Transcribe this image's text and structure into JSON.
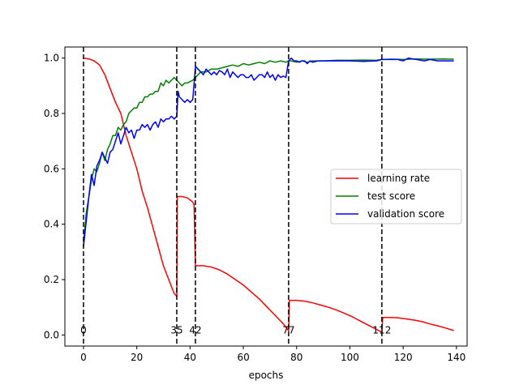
{
  "chart_data": {
    "type": "line",
    "title": "",
    "xlabel": "epochs",
    "ylabel": "",
    "xlim": [
      -7,
      144
    ],
    "ylim": [
      -0.04,
      1.04
    ],
    "xticks": [
      0,
      20,
      40,
      60,
      80,
      100,
      120,
      140
    ],
    "yticks": [
      0.0,
      0.2,
      0.4,
      0.6,
      0.8,
      1.0
    ],
    "xtick_labels": [
      "0",
      "20",
      "40",
      "60",
      "80",
      "100",
      "120",
      "140"
    ],
    "ytick_labels": [
      "0.0",
      "0.2",
      "0.4",
      "0.6",
      "0.8",
      "1.0"
    ],
    "grid": false,
    "legend_position": "center-right",
    "vlines": [
      {
        "x": 0,
        "label": "0"
      },
      {
        "x": 35,
        "label": "35"
      },
      {
        "x": 42,
        "label": "42"
      },
      {
        "x": 77,
        "label": "77"
      },
      {
        "x": 112,
        "label": "112"
      }
    ],
    "series": [
      {
        "name": "learning rate",
        "color": "#ff0000",
        "points": [
          [
            0,
            1.0
          ],
          [
            2,
            0.997
          ],
          [
            4,
            0.99
          ],
          [
            6,
            0.975
          ],
          [
            8,
            0.94
          ],
          [
            10,
            0.89
          ],
          [
            12,
            0.84
          ],
          [
            14,
            0.8
          ],
          [
            16,
            0.72
          ],
          [
            18,
            0.66
          ],
          [
            20,
            0.6
          ],
          [
            22,
            0.52
          ],
          [
            24,
            0.46
          ],
          [
            26,
            0.39
          ],
          [
            28,
            0.32
          ],
          [
            30,
            0.25
          ],
          [
            32,
            0.2
          ],
          [
            34,
            0.15
          ],
          [
            35,
            0.14
          ],
          [
            35.2,
            0.5
          ],
          [
            37,
            0.5
          ],
          [
            39,
            0.495
          ],
          [
            41,
            0.48
          ],
          [
            41.5,
            0.47
          ],
          [
            42,
            0.25
          ],
          [
            45,
            0.25
          ],
          [
            48,
            0.245
          ],
          [
            51,
            0.235
          ],
          [
            54,
            0.22
          ],
          [
            57,
            0.2
          ],
          [
            60,
            0.18
          ],
          [
            63,
            0.155
          ],
          [
            66,
            0.13
          ],
          [
            69,
            0.1
          ],
          [
            72,
            0.07
          ],
          [
            75,
            0.04
          ],
          [
            77,
            0.015
          ],
          [
            77.3,
            0.125
          ],
          [
            80,
            0.125
          ],
          [
            83,
            0.122
          ],
          [
            86,
            0.116
          ],
          [
            89,
            0.108
          ],
          [
            92,
            0.1
          ],
          [
            95,
            0.09
          ],
          [
            98,
            0.078
          ],
          [
            101,
            0.065
          ],
          [
            104,
            0.05
          ],
          [
            107,
            0.035
          ],
          [
            110,
            0.02
          ],
          [
            112,
            0.01
          ],
          [
            112.3,
            0.063
          ],
          [
            115,
            0.063
          ],
          [
            118,
            0.062
          ],
          [
            121,
            0.058
          ],
          [
            124,
            0.054
          ],
          [
            127,
            0.048
          ],
          [
            130,
            0.04
          ],
          [
            133,
            0.033
          ],
          [
            136,
            0.025
          ],
          [
            139,
            0.016
          ]
        ]
      },
      {
        "name": "test score",
        "color": "#008000",
        "points": [
          [
            0,
            0.33
          ],
          [
            1,
            0.44
          ],
          [
            2,
            0.5
          ],
          [
            3,
            0.56
          ],
          [
            4,
            0.6
          ],
          [
            5,
            0.59
          ],
          [
            6,
            0.62
          ],
          [
            7,
            0.66
          ],
          [
            8,
            0.63
          ],
          [
            9,
            0.67
          ],
          [
            10,
            0.69
          ],
          [
            11,
            0.72
          ],
          [
            12,
            0.72
          ],
          [
            13,
            0.75
          ],
          [
            14,
            0.74
          ],
          [
            15,
            0.76
          ],
          [
            16,
            0.77
          ],
          [
            17,
            0.8
          ],
          [
            18,
            0.81
          ],
          [
            19,
            0.82
          ],
          [
            20,
            0.82
          ],
          [
            21,
            0.84
          ],
          [
            22,
            0.84
          ],
          [
            23,
            0.86
          ],
          [
            24,
            0.86
          ],
          [
            25,
            0.87
          ],
          [
            26,
            0.87
          ],
          [
            27,
            0.88
          ],
          [
            28,
            0.88
          ],
          [
            29,
            0.91
          ],
          [
            30,
            0.9
          ],
          [
            31,
            0.92
          ],
          [
            32,
            0.91
          ],
          [
            33,
            0.92
          ],
          [
            34,
            0.93
          ],
          [
            35,
            0.92
          ],
          [
            36,
            0.91
          ],
          [
            37,
            0.9
          ],
          [
            38,
            0.91
          ],
          [
            39,
            0.91
          ],
          [
            40,
            0.915
          ],
          [
            41,
            0.92
          ],
          [
            42,
            0.93
          ],
          [
            43,
            0.94
          ],
          [
            44,
            0.95
          ],
          [
            46,
            0.95
          ],
          [
            48,
            0.96
          ],
          [
            50,
            0.96
          ],
          [
            52,
            0.965
          ],
          [
            54,
            0.97
          ],
          [
            56,
            0.975
          ],
          [
            58,
            0.97
          ],
          [
            60,
            0.98
          ],
          [
            62,
            0.975
          ],
          [
            64,
            0.98
          ],
          [
            66,
            0.985
          ],
          [
            68,
            0.98
          ],
          [
            70,
            0.99
          ],
          [
            72,
            0.985
          ],
          [
            74,
            0.99
          ],
          [
            76,
            0.985
          ],
          [
            77,
            0.99
          ],
          [
            78,
            0.99
          ],
          [
            80,
            0.985
          ],
          [
            82,
            0.99
          ],
          [
            84,
            0.985
          ],
          [
            86,
            0.99
          ],
          [
            90,
            0.99
          ],
          [
            95,
            0.992
          ],
          [
            100,
            0.992
          ],
          [
            105,
            0.993
          ],
          [
            110,
            0.992
          ],
          [
            112,
            0.995
          ],
          [
            116,
            0.996
          ],
          [
            120,
            0.995
          ],
          [
            125,
            0.997
          ],
          [
            130,
            0.996
          ],
          [
            135,
            0.997
          ],
          [
            139,
            0.996
          ]
        ]
      },
      {
        "name": "validation score",
        "color": "#0000ff",
        "points": [
          [
            0,
            0.32
          ],
          [
            1,
            0.41
          ],
          [
            2,
            0.5
          ],
          [
            3,
            0.58
          ],
          [
            4,
            0.54
          ],
          [
            5,
            0.61
          ],
          [
            6,
            0.63
          ],
          [
            7,
            0.66
          ],
          [
            8,
            0.64
          ],
          [
            9,
            0.62
          ],
          [
            10,
            0.66
          ],
          [
            11,
            0.67
          ],
          [
            12,
            0.7
          ],
          [
            13,
            0.73
          ],
          [
            14,
            0.69
          ],
          [
            15,
            0.72
          ],
          [
            16,
            0.75
          ],
          [
            17,
            0.73
          ],
          [
            18,
            0.74
          ],
          [
            19,
            0.71
          ],
          [
            20,
            0.74
          ],
          [
            21,
            0.74
          ],
          [
            22,
            0.76
          ],
          [
            23,
            0.75
          ],
          [
            24,
            0.76
          ],
          [
            25,
            0.74
          ],
          [
            26,
            0.76
          ],
          [
            27,
            0.77
          ],
          [
            28,
            0.75
          ],
          [
            29,
            0.78
          ],
          [
            30,
            0.77
          ],
          [
            31,
            0.78
          ],
          [
            32,
            0.78
          ],
          [
            33,
            0.79
          ],
          [
            34,
            0.78
          ],
          [
            35,
            0.79
          ],
          [
            35.5,
            0.88
          ],
          [
            36,
            0.86
          ],
          [
            37,
            0.85
          ],
          [
            38,
            0.84
          ],
          [
            39,
            0.85
          ],
          [
            40,
            0.84
          ],
          [
            41,
            0.85
          ],
          [
            42,
            0.97
          ],
          [
            43,
            0.96
          ],
          [
            44,
            0.95
          ],
          [
            45,
            0.94
          ],
          [
            46,
            0.96
          ],
          [
            47,
            0.95
          ],
          [
            48,
            0.94
          ],
          [
            49,
            0.95
          ],
          [
            50,
            0.94
          ],
          [
            51,
            0.955
          ],
          [
            52,
            0.95
          ],
          [
            53,
            0.94
          ],
          [
            54,
            0.96
          ],
          [
            55,
            0.93
          ],
          [
            56,
            0.95
          ],
          [
            57,
            0.94
          ],
          [
            58,
            0.93
          ],
          [
            59,
            0.94
          ],
          [
            60,
            0.94
          ],
          [
            61,
            0.93
          ],
          [
            62,
            0.93
          ],
          [
            63,
            0.94
          ],
          [
            64,
            0.92
          ],
          [
            65,
            0.93
          ],
          [
            66,
            0.94
          ],
          [
            67,
            0.94
          ],
          [
            68,
            0.93
          ],
          [
            69,
            0.95
          ],
          [
            70,
            0.93
          ],
          [
            71,
            0.94
          ],
          [
            72,
            0.92
          ],
          [
            73,
            0.94
          ],
          [
            74,
            0.93
          ],
          [
            75,
            0.935
          ],
          [
            76,
            0.93
          ],
          [
            77,
            0.99
          ],
          [
            78,
            1.0
          ],
          [
            79,
            0.99
          ],
          [
            80,
            0.99
          ],
          [
            81,
            0.985
          ],
          [
            82,
            0.99
          ],
          [
            83,
            0.99
          ],
          [
            84,
            0.98
          ],
          [
            85,
            0.99
          ],
          [
            86,
            0.985
          ],
          [
            88,
            0.99
          ],
          [
            90,
            0.99
          ],
          [
            95,
            0.99
          ],
          [
            100,
            0.99
          ],
          [
            105,
            0.988
          ],
          [
            110,
            0.99
          ],
          [
            112,
            0.995
          ],
          [
            115,
            0.995
          ],
          [
            118,
            0.995
          ],
          [
            120,
            0.99
          ],
          [
            122,
            1.0
          ],
          [
            125,
            0.995
          ],
          [
            128,
            0.99
          ],
          [
            130,
            0.995
          ],
          [
            133,
            0.99
          ],
          [
            136,
            0.99
          ],
          [
            139,
            0.99
          ]
        ]
      }
    ]
  }
}
